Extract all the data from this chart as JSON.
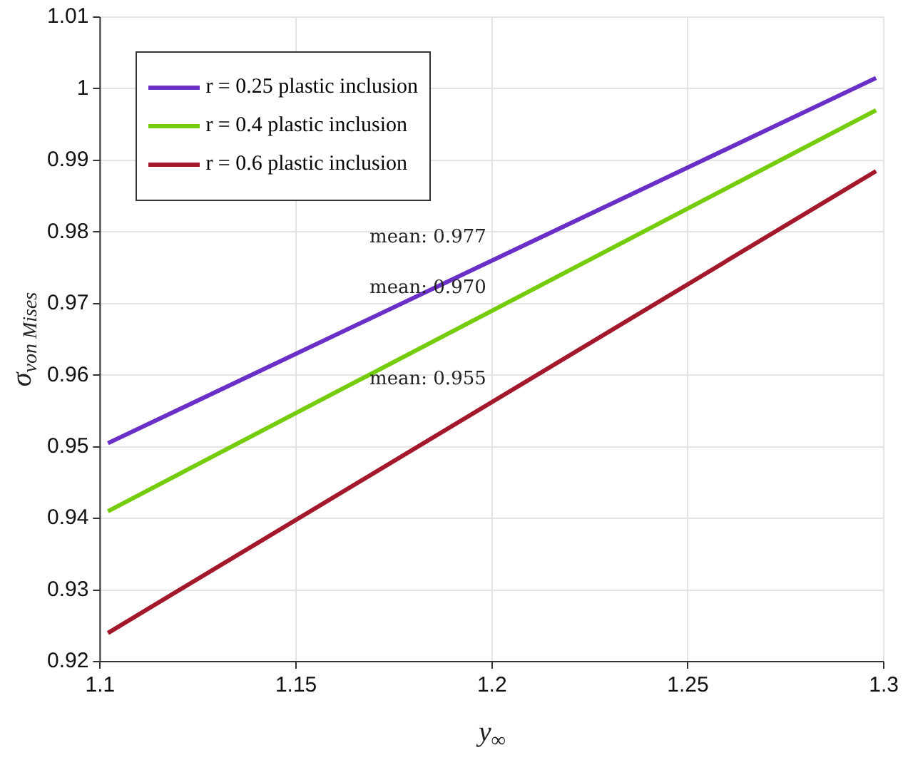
{
  "chart_data": {
    "type": "line",
    "xlabel": "y$_{∞}$",
    "ylabel": "σ$_{von Mises}$",
    "xlim": [
      1.1,
      1.3
    ],
    "xticks": [
      1.1,
      1.15,
      1.2,
      1.25,
      1.3
    ],
    "ylim": [
      0.92,
      1.01
    ],
    "yticks": [
      0.92,
      0.93,
      0.94,
      0.95,
      0.96,
      0.97,
      0.98,
      0.99,
      1,
      1.01
    ],
    "x": [
      1.102,
      1.298
    ],
    "grid": true,
    "legend": "top left",
    "marker": "none",
    "line_style": "solid",
    "series": [
      {
        "name": "r = 0.25 plastic inclusion",
        "color": "#6a2fc6",
        "values": [
          0.9505,
          1.0015
        ]
      },
      {
        "name": "r = 0.4 plastic inclusion",
        "color": "#74cc0a",
        "values": [
          0.941,
          0.997
        ]
      },
      {
        "name": "r = 0.6 plastic inclusion",
        "color": "#a3182a",
        "values": [
          0.924,
          0.9885
        ]
      }
    ],
    "annotations": [
      "mean: 0.977",
      "mean: 0.970",
      "mean: 0.955"
    ]
  }
}
